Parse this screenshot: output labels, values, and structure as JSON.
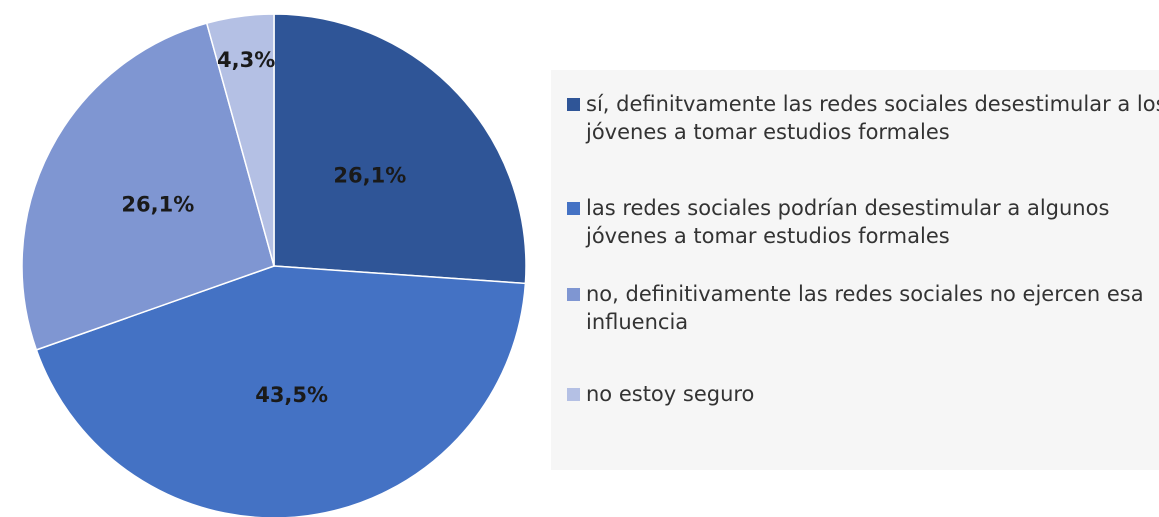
{
  "chart_data": {
    "type": "pie",
    "categories": [
      "sí, definitvamente las redes sociales desestimular a los jóvenes a tomar estudios formales",
      "las redes sociales podrían desestimular a algunos jóvenes a tomar estudios formales",
      "no, definitivamente las redes sociales no ejercen esa influencia",
      "no estoy seguro"
    ],
    "values": [
      26.1,
      43.5,
      26.1,
      4.3
    ],
    "value_labels": [
      "26,1%",
      "43,5%",
      "26,1%",
      "4,3%"
    ],
    "colors": [
      "#2f5597",
      "#4472c4",
      "#7f96d2",
      "#b4c0e4"
    ],
    "legend": "right"
  }
}
